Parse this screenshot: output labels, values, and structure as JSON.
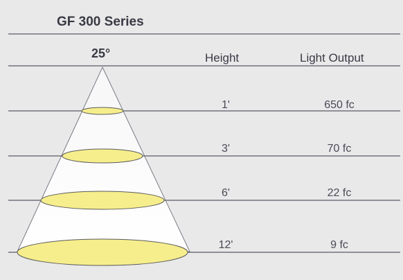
{
  "diagram": {
    "title": "GF 300 Series",
    "beam_angle": "25°",
    "columns": {
      "height": "Height",
      "light_output": "Light Output"
    },
    "rows": [
      {
        "height": "1'",
        "output": "650 fc"
      },
      {
        "height": "3'",
        "output": "70 fc"
      },
      {
        "height": "6'",
        "output": "22 fc"
      },
      {
        "height": "12'",
        "output": "9 fc"
      }
    ],
    "colors": {
      "background": "#e9e9ea",
      "cone_fill": "#ffffff",
      "spot_fill": "#f6ee8c",
      "spot_stroke": "#5a5a5a",
      "line": "#5a5a66"
    }
  }
}
